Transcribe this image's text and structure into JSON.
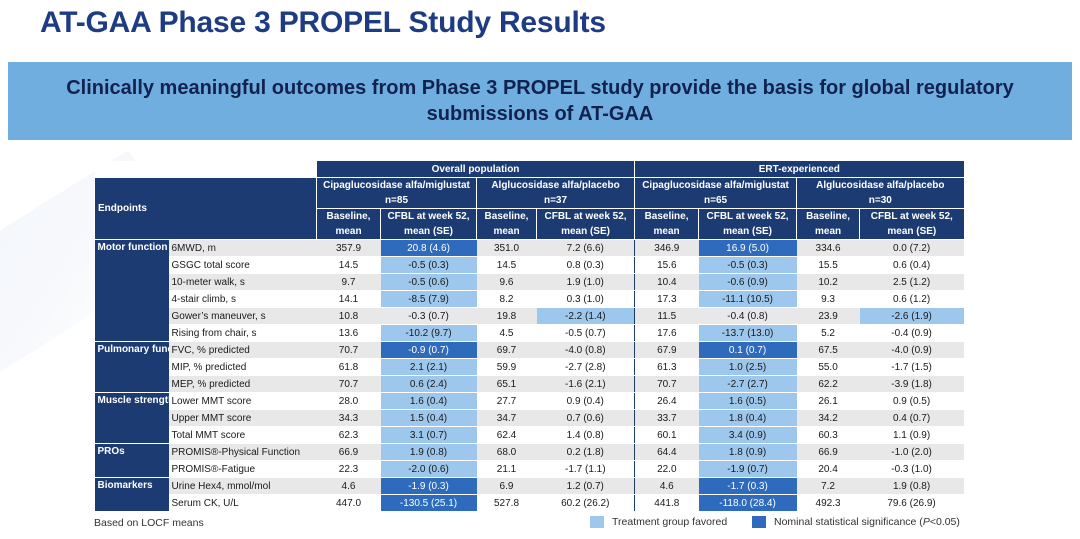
{
  "title": "AT-GAA Phase 3 PROPEL Study Results",
  "banner": "Clinically meaningful outcomes from Phase 3 PROPEL study provide the basis for global regulatory submissions of AT-GAA",
  "table": {
    "endpoints_header": "Endpoints",
    "groups": [
      "Overall population",
      "ERT-experienced"
    ],
    "arms": [
      {
        "name": "Cipaglucosidase alfa/miglustat",
        "n": "n=85"
      },
      {
        "name": "Alglucosidase alfa/placebo",
        "n": "n=37"
      },
      {
        "name": "Cipaglucosidase alfa/miglustat",
        "n": "n=65"
      },
      {
        "name": "Alglucosidase alfa/placebo",
        "n": "n=30"
      }
    ],
    "col_baseline": [
      "Baseline,",
      "mean"
    ],
    "col_cfbl": [
      "CFBL at week 52,",
      "mean (SE)"
    ],
    "categories": [
      "Motor function",
      "Pulmonary function",
      "Muscle strength",
      "PROs",
      "Biomarkers"
    ],
    "rows": [
      {
        "endpoint": "6MWD, m",
        "v": [
          "357.9",
          "20.8 (4.6)",
          "351.0",
          "7.2 (6.6)",
          "346.9",
          "16.9 (5.0)",
          "334.6",
          "0.0 (7.2)"
        ],
        "h": [
          "",
          "sig",
          "",
          "",
          "",
          "sig",
          "",
          ""
        ]
      },
      {
        "endpoint": "GSGC total score",
        "v": [
          "14.5",
          "-0.5 (0.3)",
          "14.5",
          "0.8 (0.3)",
          "15.6",
          "-0.5 (0.3)",
          "15.5",
          "0.6 (0.4)"
        ],
        "h": [
          "",
          "fav",
          "",
          "",
          "",
          "fav",
          "",
          ""
        ]
      },
      {
        "endpoint": "10-meter walk, s",
        "v": [
          "9.7",
          "-0.5 (0.6)",
          "9.6",
          "1.9 (1.0)",
          "10.4",
          "-0.6 (0.9)",
          "10.2",
          "2.5 (1.2)"
        ],
        "h": [
          "",
          "fav",
          "",
          "",
          "",
          "fav",
          "",
          ""
        ]
      },
      {
        "endpoint": "4-stair climb, s",
        "v": [
          "14.1",
          "-8.5 (7.9)",
          "8.2",
          "0.3 (1.0)",
          "17.3",
          "-11.1 (10.5)",
          "9.3",
          "0.6 (1.2)"
        ],
        "h": [
          "",
          "fav",
          "",
          "",
          "",
          "fav",
          "",
          ""
        ]
      },
      {
        "endpoint": "Gower’s maneuver, s",
        "v": [
          "10.8",
          "-0.3 (0.7)",
          "19.8",
          "-2.2 (1.4)",
          "11.5",
          "-0.4 (0.8)",
          "23.9",
          "-2.6 (1.9)"
        ],
        "h": [
          "",
          "",
          "",
          "fav",
          "",
          "",
          "",
          "fav"
        ]
      },
      {
        "endpoint": "Rising from chair, s",
        "v": [
          "13.6",
          "-10.2 (9.7)",
          "4.5",
          "-0.5 (0.7)",
          "17.6",
          "-13.7 (13.0)",
          "5.2",
          "-0.4 (0.9)"
        ],
        "h": [
          "",
          "fav",
          "",
          "",
          "",
          "fav",
          "",
          ""
        ]
      },
      {
        "endpoint": "FVC, % predicted",
        "v": [
          "70.7",
          "-0.9 (0.7)",
          "69.7",
          "-4.0 (0.8)",
          "67.9",
          "0.1 (0.7)",
          "67.5",
          "-4.0 (0.9)"
        ],
        "h": [
          "",
          "sig",
          "",
          "",
          "",
          "sig",
          "",
          ""
        ]
      },
      {
        "endpoint": "MIP, % predicted",
        "v": [
          "61.8",
          "2.1 (2.1)",
          "59.9",
          "-2.7 (2.8)",
          "61.3",
          "1.0 (2.5)",
          "55.0",
          "-1.7 (1.5)"
        ],
        "h": [
          "",
          "fav",
          "",
          "",
          "",
          "fav",
          "",
          ""
        ]
      },
      {
        "endpoint": "MEP, % predicted",
        "v": [
          "70.7",
          "0.6 (2.4)",
          "65.1",
          "-1.6 (2.1)",
          "70.7",
          "-2.7 (2.7)",
          "62.2",
          "-3.9 (1.8)"
        ],
        "h": [
          "",
          "fav",
          "",
          "",
          "",
          "fav",
          "",
          ""
        ]
      },
      {
        "endpoint": "Lower MMT score",
        "v": [
          "28.0",
          "1.6 (0.4)",
          "27.7",
          "0.9 (0.4)",
          "26.4",
          "1.6 (0.5)",
          "26.1",
          "0.9 (0.5)"
        ],
        "h": [
          "",
          "fav",
          "",
          "",
          "",
          "fav",
          "",
          ""
        ]
      },
      {
        "endpoint": "Upper MMT score",
        "v": [
          "34.3",
          "1.5 (0.4)",
          "34.7",
          "0.7 (0.6)",
          "33.7",
          "1.8 (0.4)",
          "34.2",
          "0.4 (0.7)"
        ],
        "h": [
          "",
          "fav",
          "",
          "",
          "",
          "fav",
          "",
          ""
        ]
      },
      {
        "endpoint": "Total MMT score",
        "v": [
          "62.3",
          "3.1 (0.7)",
          "62.4",
          "1.4 (0.8)",
          "60.1",
          "3.4 (0.9)",
          "60.3",
          "1.1 (0.9)"
        ],
        "h": [
          "",
          "fav",
          "",
          "",
          "",
          "fav",
          "",
          ""
        ]
      },
      {
        "endpoint": "PROMIS®-Physical Function",
        "v": [
          "66.9",
          "1.9 (0.8)",
          "68.0",
          "0.2 (1.8)",
          "64.4",
          "1.8 (0.9)",
          "66.9",
          "-1.0 (2.0)"
        ],
        "h": [
          "",
          "fav",
          "",
          "",
          "",
          "fav",
          "",
          ""
        ]
      },
      {
        "endpoint": "PROMIS®-Fatigue",
        "v": [
          "22.3",
          "-2.0 (0.6)",
          "21.1",
          "-1.7 (1.1)",
          "22.0",
          "-1.9 (0.7)",
          "20.4",
          "-0.3 (1.0)"
        ],
        "h": [
          "",
          "fav",
          "",
          "",
          "",
          "fav",
          "",
          ""
        ]
      },
      {
        "endpoint": "Urine Hex4, mmol/mol",
        "v": [
          "4.6",
          "-1.9 (0.3)",
          "6.9",
          "1.2 (0.7)",
          "4.6",
          "-1.7 (0.3)",
          "7.2",
          "1.9 (0.8)"
        ],
        "h": [
          "",
          "sig",
          "",
          "",
          "",
          "sig",
          "",
          ""
        ]
      },
      {
        "endpoint": "Serum CK, U/L",
        "v": [
          "447.0",
          "-130.5 (25.1)",
          "527.8",
          "60.2 (26.2)",
          "441.8",
          "-118.0 (28.4)",
          "492.3",
          "79.6 (26.9)"
        ],
        "h": [
          "",
          "sig",
          "",
          "",
          "",
          "sig",
          "",
          ""
        ]
      }
    ],
    "category_spans": [
      6,
      3,
      3,
      2,
      2
    ]
  },
  "footnote": "Based on LOCF means",
  "legend": {
    "favored": "Treatment group favored",
    "significance_prefix": "Nominal statistical significance (",
    "significance_p": "P",
    "significance_suffix": "<0.05)"
  },
  "colors": {
    "title": "#1d3c84",
    "banner": "#70aedf",
    "header": "#1c3b73",
    "favored": "#9dc7ec",
    "significant": "#2f6bbd"
  }
}
